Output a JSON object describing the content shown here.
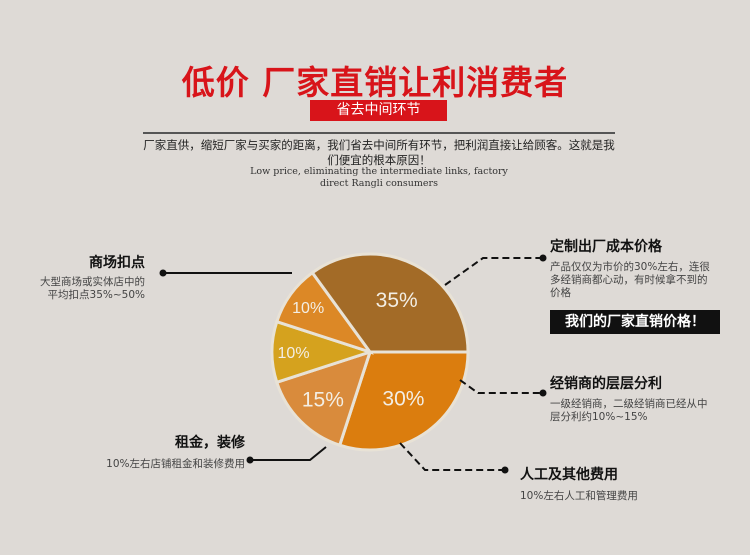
{
  "header": {
    "title": "低价 厂家直销让利消费者",
    "badge": "省去中间环节",
    "description": "厂家直供，缩短厂家与买家的距离，我们省去中间所有环节，把利润直接让给顾客。这就是我们便宜的根本原因！",
    "description_en_1": "Low price, eliminating the intermediate links, factory",
    "description_en_2": "direct Rangli consumers"
  },
  "annotations": {
    "mall": {
      "title": "商场扣点",
      "line1": "大型商场或实体店中的",
      "line2": "平均扣点35%~50%"
    },
    "rent": {
      "title": "租金，装修",
      "line1": "10%左右店铺租金和装修费用"
    },
    "factory": {
      "title": "定制出厂成本价格",
      "line1": "产品仅仅为市价的30%左右，连很",
      "line2": "多经销商都心动，有时候拿不到的",
      "line3": "价格",
      "cta": "我们的厂家直销价格！"
    },
    "dealer": {
      "title": "经销商的层层分利",
      "line1": "一级经销商，二级经销商已经从中",
      "line2": "层分利约10%~15%"
    },
    "labor": {
      "title": "人工及其他费用",
      "line1": "10%左右人工和管理费用"
    }
  },
  "chart_data": {
    "type": "pie",
    "slices": [
      {
        "label": "30%",
        "value": 30,
        "color": "#db7d0e"
      },
      {
        "label": "15%",
        "value": 15,
        "color": "#d98b3c"
      },
      {
        "label": "10%",
        "value": 10,
        "color": "#d5a21e"
      },
      {
        "label": "10%",
        "value": 10,
        "color": "#dc8826"
      },
      {
        "label": "35%",
        "value": 35,
        "color": "#a36b27"
      }
    ]
  }
}
